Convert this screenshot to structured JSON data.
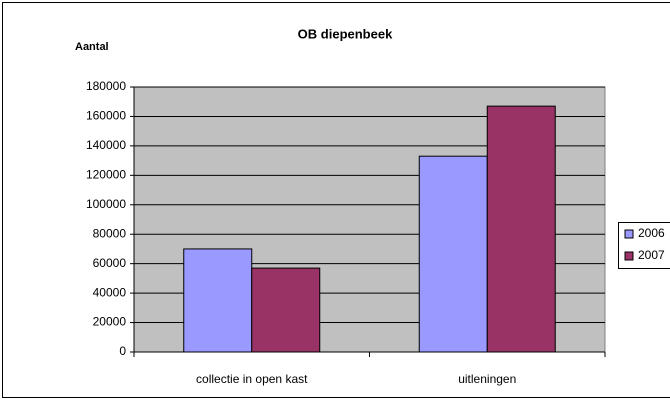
{
  "chart_data": {
    "type": "bar",
    "title": "OB diepenbeek",
    "y_label": "Aantal",
    "categories": [
      "collectie in open kast",
      "uitleningen"
    ],
    "series": [
      {
        "name": "2006",
        "color": "#9999ff",
        "values": [
          70000,
          133000
        ]
      },
      {
        "name": "2007",
        "color": "#993366",
        "values": [
          57000,
          167000
        ]
      }
    ],
    "ylim": [
      0,
      180000
    ],
    "yticks": [
      0,
      20000,
      40000,
      60000,
      80000,
      100000,
      120000,
      140000,
      160000,
      180000
    ],
    "grid": true,
    "legend": "right"
  }
}
